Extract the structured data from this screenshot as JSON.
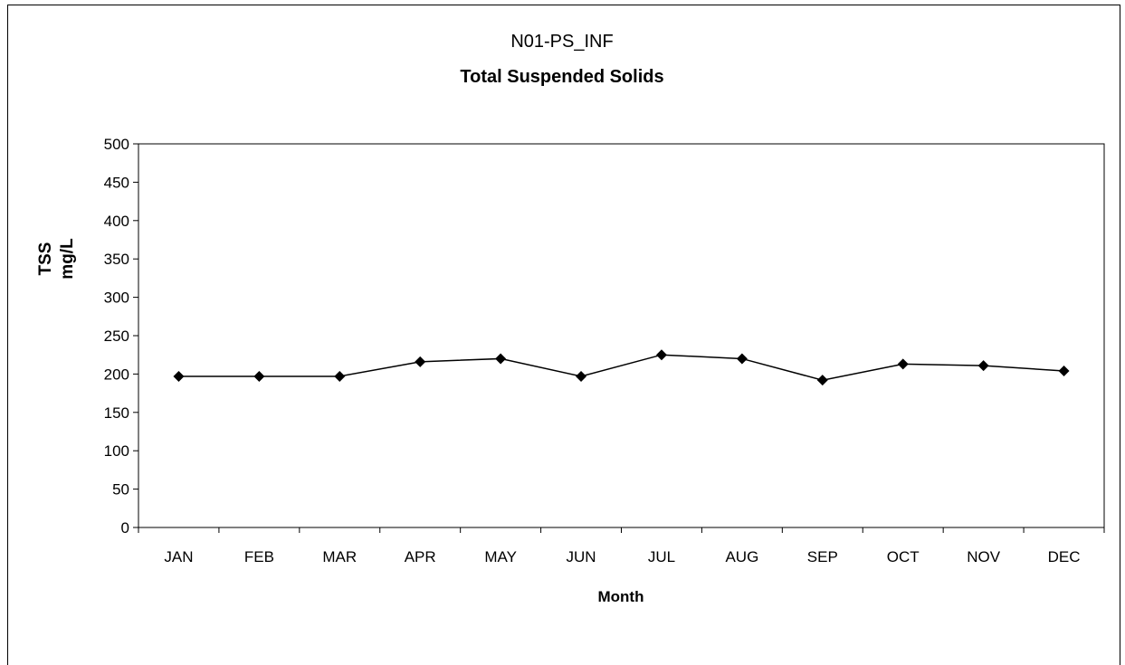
{
  "chart_data": {
    "type": "line",
    "title": "N01-PS_INF",
    "subtitle": "Total Suspended Solids",
    "xlabel": "Month",
    "ylabel": [
      "TSS",
      "mg/L"
    ],
    "categories": [
      "JAN",
      "FEB",
      "MAR",
      "APR",
      "MAY",
      "JUN",
      "JUL",
      "AUG",
      "SEP",
      "OCT",
      "NOV",
      "DEC"
    ],
    "series": [
      {
        "values": [
          197,
          197,
          197,
          216,
          220,
          197,
          225,
          220,
          192,
          213,
          211,
          204
        ]
      }
    ],
    "ylim": [
      0,
      500
    ],
    "yticks": [
      0,
      50,
      100,
      150,
      200,
      250,
      300,
      350,
      400,
      450,
      500
    ],
    "grid": false,
    "legend": "none",
    "colors": {
      "line": "#000000",
      "marker": "#000000"
    }
  }
}
